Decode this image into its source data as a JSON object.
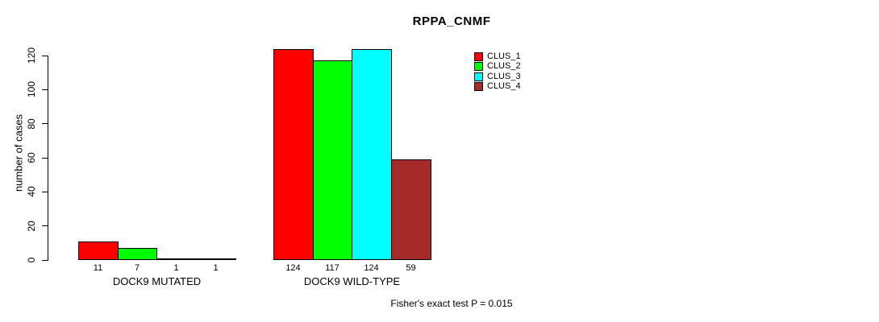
{
  "chart_data": {
    "type": "bar",
    "title": "RPPA_CNMF",
    "ylabel": "number of cases",
    "xlabel": "",
    "ylim": [
      0,
      120
    ],
    "yticks": [
      0,
      20,
      40,
      60,
      80,
      100,
      120
    ],
    "grid": false,
    "categories": [
      "DOCK9 MUTATED",
      "DOCK9 WILD-TYPE"
    ],
    "series": [
      {
        "name": "CLUS_1",
        "color": "#FF0000",
        "values": [
          11,
          124
        ]
      },
      {
        "name": "CLUS_2",
        "color": "#00FF00",
        "values": [
          7,
          117
        ]
      },
      {
        "name": "CLUS_3",
        "color": "#00FFFF",
        "values": [
          1,
          124
        ]
      },
      {
        "name": "CLUS_4",
        "color": "#A52A2A",
        "values": [
          1,
          59
        ]
      }
    ],
    "bar_value_labels": [
      [
        11,
        7,
        1,
        1
      ],
      [
        124,
        117,
        124,
        59
      ]
    ],
    "bar_border_color": "#000000",
    "legend_position": "top-right",
    "legend_entries": [
      "CLUS_1",
      "CLUS_2",
      "CLUS_3",
      "CLUS_4"
    ],
    "annotation": "Fisher's exact test P = 0.015"
  }
}
